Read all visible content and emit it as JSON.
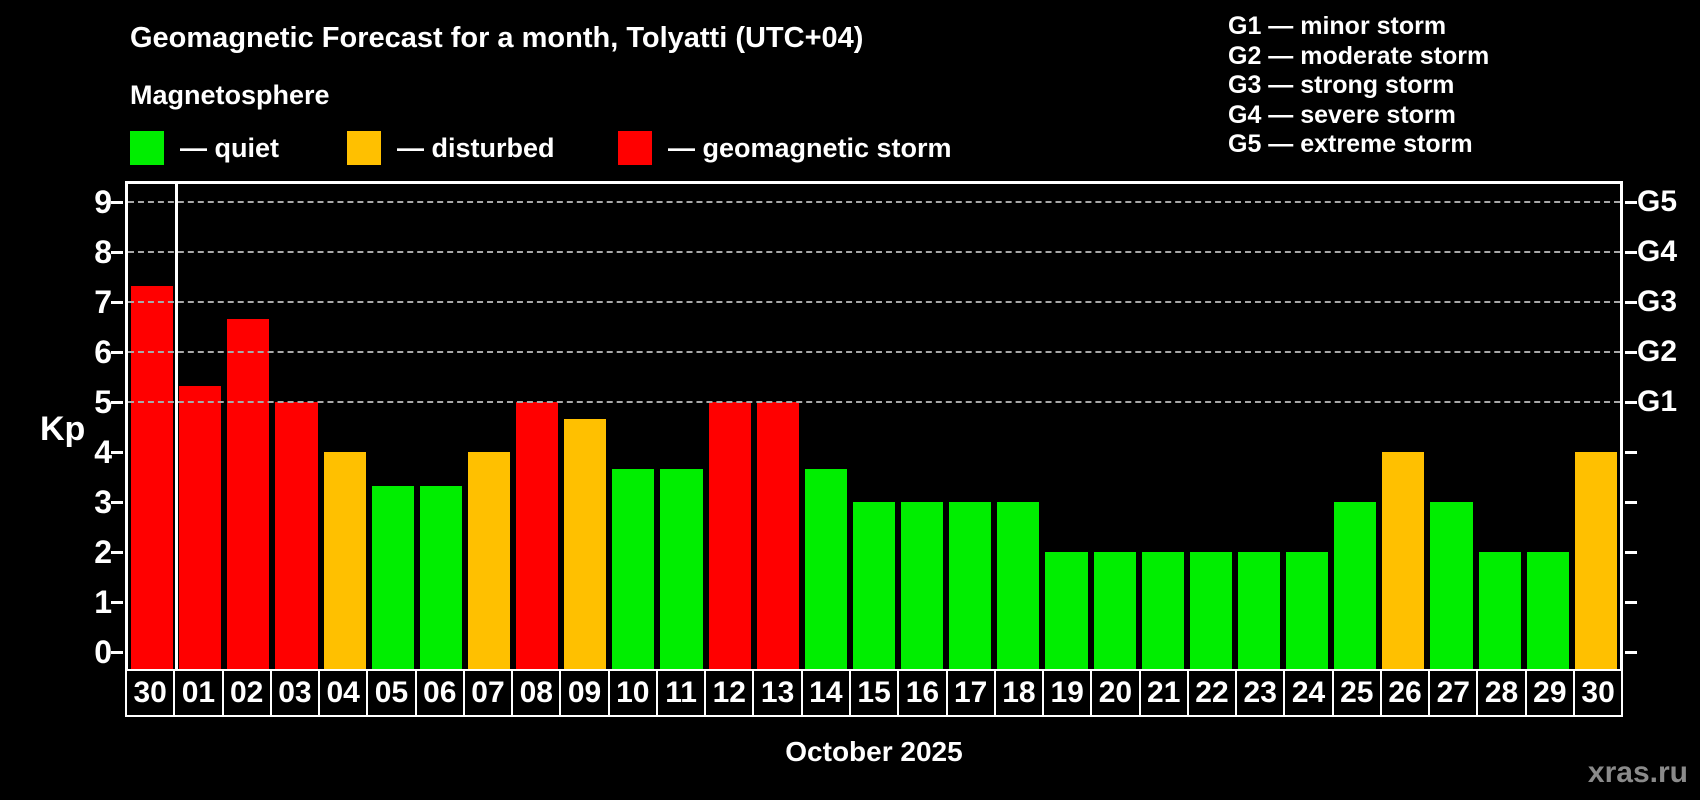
{
  "title": "Geomagnetic Forecast for a month, Tolyatti (UTC+04)",
  "subtitle": "Magnetosphere",
  "watermark": "xras.ru",
  "colors": {
    "quiet": "#00ee00",
    "disturbed": "#ffc000",
    "storm": "#ff0000",
    "background": "#000000",
    "text": "#ffffff",
    "grid": "#a8a8a8",
    "watermark_text": "#8a8a8a"
  },
  "legend": [
    {
      "status": "quiet",
      "label": "— quiet"
    },
    {
      "status": "disturbed",
      "label": "— disturbed"
    },
    {
      "status": "storm",
      "label": "— geomagnetic storm"
    }
  ],
  "storm_scale": [
    {
      "code": "G1",
      "text": "G1 — minor storm"
    },
    {
      "code": "G2",
      "text": "G2 — moderate storm"
    },
    {
      "code": "G3",
      "text": "G3 — strong storm"
    },
    {
      "code": "G4",
      "text": "G4 — severe storm"
    },
    {
      "code": "G5",
      "text": "G5 — extreme storm"
    }
  ],
  "y_axis": {
    "label": "Kp",
    "ticks": [
      "0",
      "1",
      "2",
      "3",
      "4",
      "5",
      "6",
      "7",
      "8",
      "9"
    ]
  },
  "right_axis": {
    "labels": [
      "G1",
      "G2",
      "G3",
      "G4",
      "G5"
    ],
    "kp_levels": [
      5,
      6,
      7,
      8,
      9
    ]
  },
  "x_axis": {
    "month_label": "October 2025"
  },
  "chart_data": {
    "type": "bar",
    "title": "Geomagnetic Forecast for a month, Tolyatti (UTC+04)",
    "ylabel": "Kp",
    "ylim": [
      0,
      9.7
    ],
    "grid": "dashed horizontal at Kp 5-9 only",
    "legend_position": "top-left",
    "categories": [
      "30",
      "01",
      "02",
      "03",
      "04",
      "05",
      "06",
      "07",
      "08",
      "09",
      "10",
      "11",
      "12",
      "13",
      "14",
      "15",
      "16",
      "17",
      "18",
      "19",
      "20",
      "21",
      "22",
      "23",
      "24",
      "25",
      "26",
      "27",
      "28",
      "29",
      "30"
    ],
    "values": [
      7.33,
      5.33,
      6.67,
      5,
      4,
      3.33,
      3.33,
      4,
      5,
      4.67,
      3.67,
      3.67,
      5,
      5,
      3.67,
      3,
      3,
      3,
      3,
      2,
      2,
      2,
      2,
      2,
      2,
      3,
      4,
      3,
      2,
      2,
      4
    ],
    "statuses": [
      "storm",
      "storm",
      "storm",
      "storm",
      "disturbed",
      "quiet",
      "quiet",
      "disturbed",
      "storm",
      "disturbed",
      "quiet",
      "quiet",
      "storm",
      "storm",
      "quiet",
      "quiet",
      "quiet",
      "quiet",
      "quiet",
      "quiet",
      "quiet",
      "quiet",
      "quiet",
      "quiet",
      "quiet",
      "quiet",
      "disturbed",
      "quiet",
      "quiet",
      "quiet",
      "disturbed"
    ],
    "separator_after_index": 0
  }
}
